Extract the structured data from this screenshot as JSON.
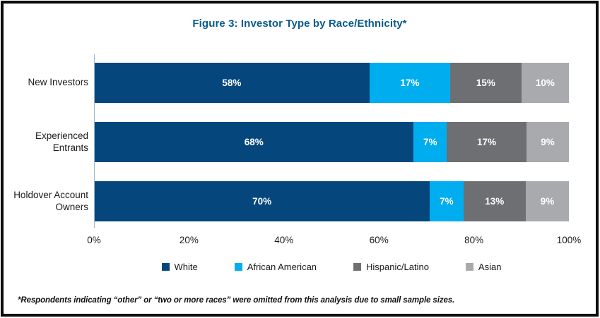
{
  "title": "Figure 3: Investor Type by Race/Ethnicity*",
  "footnote": "*Respondents indicating “other” or “two or more races” were omitted from this analysis due to small sample sizes.",
  "colors": {
    "title_text": "#09598f",
    "white_series": "#05477d",
    "african_american_series": "#00aeef",
    "hispanic_latino_series": "#6e6f72",
    "asian_series": "#a8aaad",
    "axis_line": "#9fb6cb",
    "frame_border": "#0d0d0d"
  },
  "chart_data": {
    "type": "bar",
    "orientation": "horizontal-stacked",
    "title": "Figure 3: Investor Type by Race/Ethnicity*",
    "categories": [
      "New Investors",
      "Experienced Entrants",
      "Holdover Account Owners"
    ],
    "series": [
      {
        "name": "White",
        "color": "#05477d",
        "values": [
          58,
          68,
          70
        ]
      },
      {
        "name": "African American",
        "color": "#00aeef",
        "values": [
          17,
          7,
          7
        ]
      },
      {
        "name": "Hispanic/Latino",
        "color": "#6e6f72",
        "values": [
          15,
          17,
          13
        ]
      },
      {
        "name": "Asian",
        "color": "#a8aaad",
        "values": [
          10,
          9,
          9
        ]
      }
    ],
    "data_labels": [
      [
        "58%",
        "17%",
        "15%",
        "10%"
      ],
      [
        "68%",
        "7%",
        "17%",
        "9%"
      ],
      [
        "70%",
        "7%",
        "13%",
        "9%"
      ]
    ],
    "x_ticks": [
      "0%",
      "20%",
      "40%",
      "60%",
      "80%",
      "100%"
    ],
    "xlim": [
      0,
      100
    ],
    "xlabel": "",
    "ylabel": "",
    "grid": false,
    "legend_position": "bottom"
  }
}
